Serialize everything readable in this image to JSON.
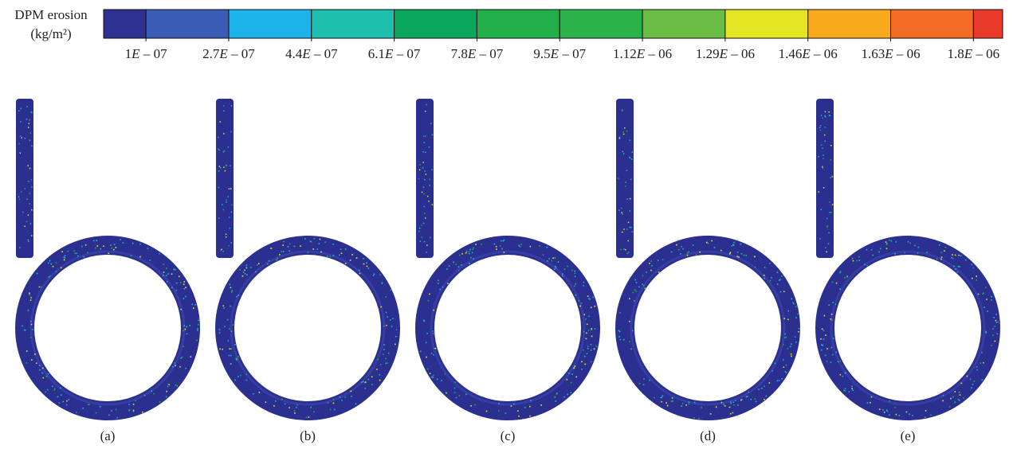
{
  "colorbar": {
    "title": "DPM erosion",
    "unit": "(kg/m²)",
    "lim": [
      1.3e-08,
      1.86e-06
    ],
    "ticks": [
      {
        "value": 1e-07,
        "label": "1E – 07"
      },
      {
        "value": 2.7e-07,
        "label": "2.7E – 07"
      },
      {
        "value": 4.4e-07,
        "label": "4.4E – 07"
      },
      {
        "value": 6.1e-07,
        "label": "6.1E – 07"
      },
      {
        "value": 7.8e-07,
        "label": "7.8E – 07"
      },
      {
        "value": 9.5e-07,
        "label": "9.5E – 07"
      },
      {
        "value": 1.12e-06,
        "label": "1.12E – 06"
      },
      {
        "value": 1.29e-06,
        "label": "1.29E – 06"
      },
      {
        "value": 1.46e-06,
        "label": "1.46E – 06"
      },
      {
        "value": 1.63e-06,
        "label": "1.63E – 06"
      },
      {
        "value": 1.8e-06,
        "label": "1.8E – 06"
      }
    ],
    "colors": [
      "#2e3192",
      "#3a5cb4",
      "#1cb3ea",
      "#1fbfad",
      "#0aa65c",
      "#22ae48",
      "#2cb24a",
      "#6cbd45",
      "#e4e623",
      "#f8a91c",
      "#f26b27",
      "#e8392a"
    ]
  },
  "panels": [
    "(a)",
    "(b)",
    "(c)",
    "(d)",
    "(e)"
  ]
}
